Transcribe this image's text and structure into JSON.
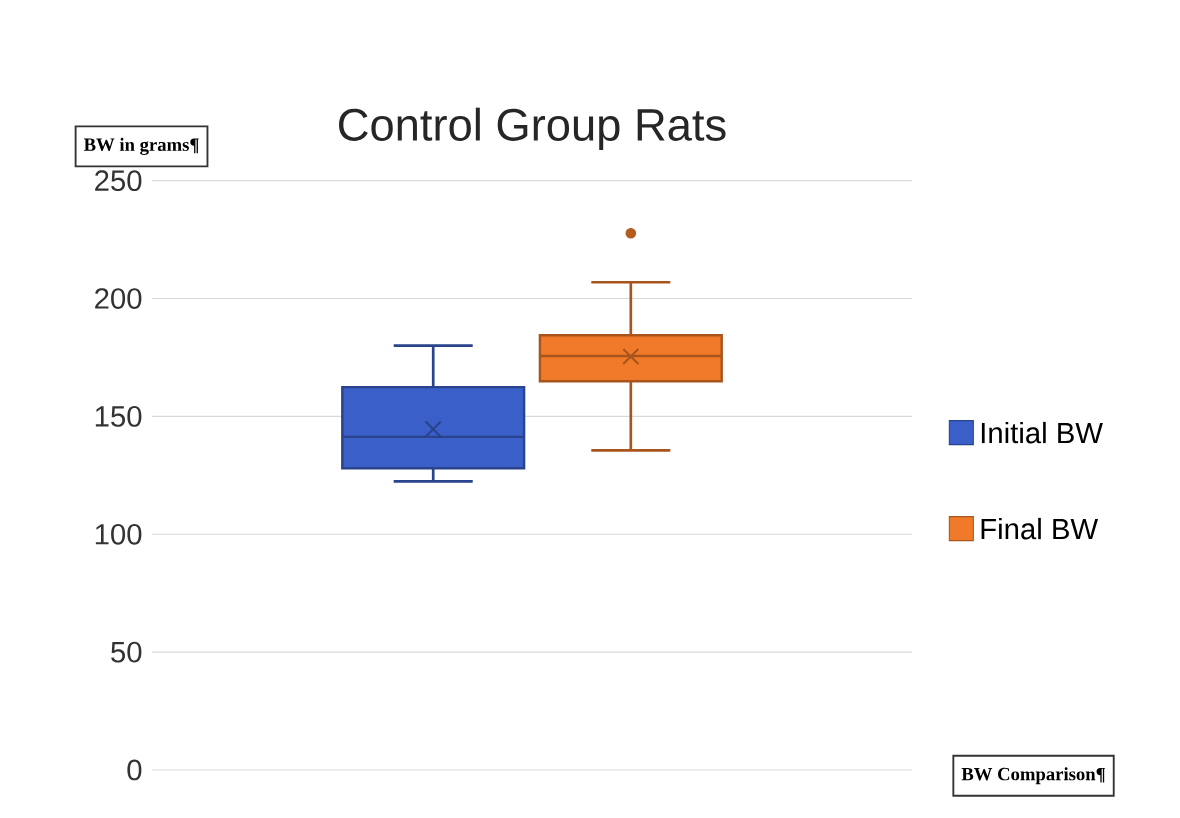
{
  "chart_data": {
    "type": "box",
    "title": "Control Group Rats",
    "ylabel": "BW in grams¶",
    "xlabel": "BW Comparison¶",
    "categories": [
      null
    ],
    "series": [
      {
        "name": "Initial BW",
        "color": "#3a5fc8",
        "boxes": [
          {
            "low": 122.4,
            "q1": 128,
            "median": 141.3,
            "q3": 162.4,
            "high": 180,
            "mean": 144.6
          }
        ]
      },
      {
        "name": "Final BW",
        "color": "#f07a2a",
        "boxes": [
          {
            "low": 135.6,
            "q1": 164.9,
            "median": 175.6,
            "q3": 184.4,
            "high": 206.9,
            "mean": 175.4,
            "outliers": [
              227.7
            ]
          }
        ]
      }
    ],
    "ylim": [
      0,
      250
    ],
    "yticks": [
      0,
      50,
      100,
      150,
      200,
      250
    ],
    "grid": "y",
    "legend": "right",
    "tick_labels": "y"
  }
}
